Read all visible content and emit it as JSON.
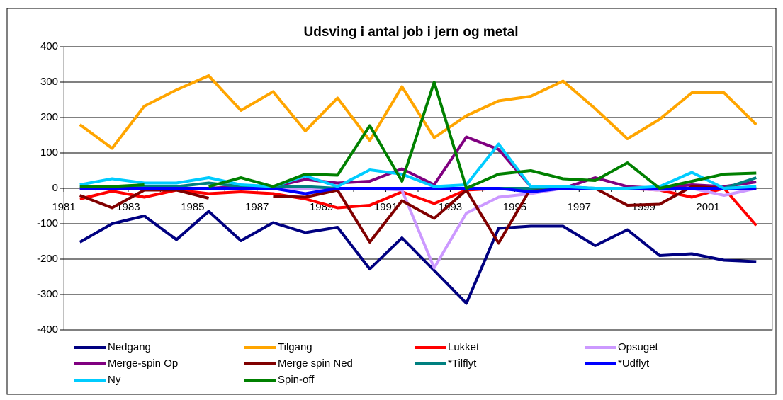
{
  "chart_data": {
    "type": "line",
    "title": "Udsving i antal job i jern og metal",
    "categories": [
      "1981",
      null,
      "1983",
      null,
      "1985",
      null,
      "1987",
      null,
      "1989",
      null,
      "1991",
      null,
      "1993",
      null,
      "1995",
      null,
      "1997",
      null,
      "1999",
      null,
      "2001",
      null
    ],
    "ylim": [
      -400,
      400
    ],
    "yticks": [
      -400,
      -300,
      -200,
      -100,
      0,
      100,
      200,
      300,
      400
    ],
    "grid": true,
    "series": [
      {
        "name": "Nedgang",
        "color": "#000080",
        "values": [
          -152,
          -100,
          -78,
          -145,
          -65,
          -148,
          -97,
          -125,
          -110,
          -228,
          -140,
          -232,
          -325,
          -113,
          -107,
          -107,
          -162,
          -117,
          -190,
          -185,
          -203,
          -207
        ]
      },
      {
        "name": "Tilgang",
        "color": "#ffa500",
        "values": [
          180,
          113,
          232,
          278,
          318,
          220,
          273,
          162,
          255,
          135,
          287,
          143,
          205,
          247,
          260,
          303,
          225,
          140,
          195,
          270,
          270,
          180
        ]
      },
      {
        "name": "Lukket",
        "color": "#ff0000",
        "values": [
          -30,
          -8,
          -25,
          -5,
          -15,
          -10,
          -15,
          -30,
          -55,
          -48,
          -10,
          -43,
          -5,
          0,
          -5,
          0,
          0,
          0,
          -5,
          -25,
          0,
          -105
        ]
      },
      {
        "name": "Opsuget",
        "color": "#cc99ff",
        "values": [
          0,
          0,
          0,
          0,
          0,
          0,
          0,
          0,
          0,
          0,
          -5,
          -225,
          -70,
          -25,
          -15,
          0,
          0,
          0,
          -5,
          0,
          -20,
          0
        ]
      },
      {
        "name": "Merge-spin Op",
        "color": "#800080",
        "values": [
          0,
          0,
          0,
          0,
          0,
          5,
          5,
          25,
          15,
          20,
          55,
          10,
          145,
          110,
          5,
          0,
          30,
          5,
          0,
          10,
          5,
          18
        ]
      },
      {
        "name": "Merge spin Ned",
        "color": "#800000",
        "values": [
          -20,
          -55,
          -5,
          -5,
          -28,
          null,
          -22,
          -25,
          -5,
          -152,
          -35,
          -85,
          -5,
          -155,
          0,
          0,
          0,
          -48,
          -45,
          5,
          0,
          0
        ]
      },
      {
        "name": "*Tilflyt",
        "color": "#008080",
        "values": [
          5,
          5,
          5,
          5,
          15,
          5,
          5,
          5,
          0,
          0,
          0,
          0,
          0,
          0,
          0,
          5,
          0,
          0,
          0,
          0,
          0,
          30
        ]
      },
      {
        "name": "*Udflyt",
        "color": "#0000ff",
        "values": [
          0,
          0,
          0,
          0,
          0,
          0,
          0,
          -15,
          0,
          0,
          0,
          0,
          0,
          0,
          -10,
          0,
          0,
          0,
          0,
          0,
          0,
          0
        ]
      },
      {
        "name": "Ny",
        "color": "#00ccff",
        "values": [
          10,
          27,
          15,
          15,
          30,
          10,
          5,
          35,
          5,
          52,
          40,
          5,
          10,
          125,
          5,
          5,
          0,
          0,
          5,
          45,
          0,
          5
        ]
      },
      {
        "name": "Spin-off",
        "color": "#008000",
        "values": [
          5,
          5,
          10,
          null,
          5,
          30,
          5,
          40,
          37,
          177,
          20,
          300,
          0,
          40,
          50,
          27,
          22,
          72,
          0,
          20,
          40,
          43
        ]
      }
    ]
  }
}
